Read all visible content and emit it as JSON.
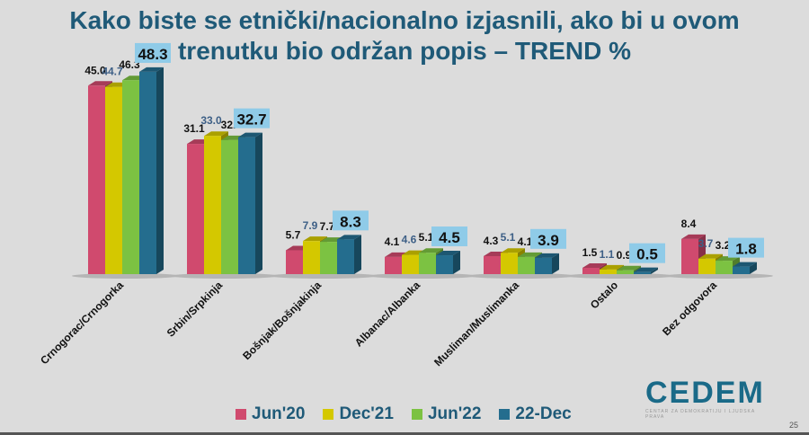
{
  "chart_data": {
    "type": "bar",
    "title": "Kako biste se etnički/nacionalno izjasnili, ako bi u ovom trenutku bio održan popis – TREND %",
    "title_lines": [
      "Kako biste se etnički/nacionalno izjasnili, ako bi u ovom",
      "trenutku bio održan popis – TREND %"
    ],
    "categories": [
      "Crnogorac/Crnogorka",
      "Srbin/Srpkinja",
      "Bošnjak/Bošnjakinja",
      "Albanac/Albanka",
      "Musliman/Muslimanka",
      "Ostalo",
      "Bez odgovora"
    ],
    "series": [
      {
        "name": "Jun'20",
        "color": "#d04a6e",
        "values": [
          45.0,
          31.1,
          5.7,
          4.1,
          4.3,
          1.5,
          8.4
        ],
        "labels": [
          "45.0",
          "31.1",
          "5.7",
          "4.1",
          "4.3",
          "1.5",
          "8.4"
        ]
      },
      {
        "name": "Dec'21",
        "color": "#d4c800",
        "values": [
          44.7,
          33.0,
          7.9,
          4.6,
          5.1,
          1.1,
          3.7
        ],
        "labels": [
          "44.7",
          "33.0",
          "7.9",
          "4.6",
          "5.1",
          "1.1",
          "3.7"
        ]
      },
      {
        "name": "Jun'22",
        "color": "#7cc242",
        "values": [
          46.3,
          32.0,
          7.7,
          5.1,
          4.1,
          0.9,
          3.2
        ],
        "labels": [
          "46.3",
          "32.",
          "7.7",
          "5.1",
          "4.1",
          "0.9",
          "3.2"
        ]
      },
      {
        "name": "22-Dec",
        "color": "#246d8e",
        "values": [
          48.3,
          32.7,
          8.3,
          4.5,
          3.9,
          0.5,
          1.8
        ],
        "labels": [
          "48.3",
          "32.7",
          "8.3",
          "4.5",
          "3.9",
          "0.5",
          "1.8"
        ]
      }
    ],
    "xlabel": "",
    "ylabel": "",
    "ylim": [
      0,
      50
    ],
    "grid": false,
    "legend": "bottom"
  },
  "logo": {
    "text": "CEDEM",
    "subtitle": "CENTAR ZA DEMOKRATIJU I LJUDSKA PRAVA"
  },
  "page_number": "25"
}
